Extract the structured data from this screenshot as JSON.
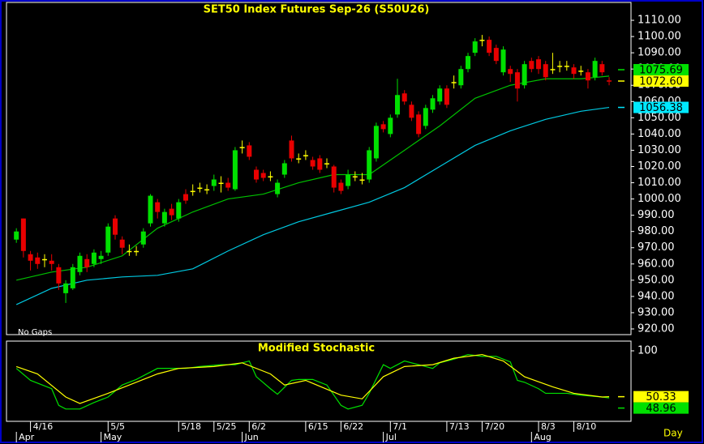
{
  "chart_data": [
    {
      "type": "candlestick",
      "title": "SET50 Index Futures Sep-26 (S50U26)",
      "note": "No Gaps",
      "categories": [
        null,
        null,
        "4/16",
        null,
        null,
        null,
        null,
        null,
        null,
        null,
        null,
        null,
        null,
        "5/5",
        null,
        null,
        null,
        null,
        null,
        null,
        null,
        null,
        null,
        "5/18",
        null,
        null,
        null,
        null,
        "5/25",
        null,
        null,
        null,
        null,
        "6/2",
        null,
        null,
        null,
        null,
        null,
        null,
        null,
        "6/15",
        null,
        null,
        null,
        null,
        "6/22",
        null,
        null,
        null,
        null,
        null,
        null,
        "7/1",
        null,
        null,
        null,
        null,
        null,
        null,
        null,
        "7/13",
        null,
        null,
        null,
        null,
        "7/20",
        null,
        null,
        null,
        null,
        null,
        null,
        null,
        "8/3",
        null,
        null,
        null,
        null,
        "8/10",
        null,
        null,
        null,
        null,
        null
      ],
      "months": [
        "Apr",
        null,
        null,
        null,
        null,
        null,
        null,
        null,
        null,
        null,
        null,
        null,
        "May",
        null,
        null,
        null,
        null,
        null,
        null,
        null,
        null,
        null,
        null,
        null,
        null,
        null,
        null,
        null,
        null,
        null,
        null,
        null,
        "Jun",
        null,
        null,
        null,
        null,
        null,
        null,
        null,
        null,
        null,
        null,
        null,
        null,
        null,
        null,
        null,
        null,
        null,
        null,
        null,
        "Jul",
        null,
        null,
        null,
        null,
        null,
        null,
        null,
        null,
        null,
        null,
        null,
        null,
        null,
        null,
        null,
        null,
        null,
        null,
        null,
        null,
        "Aug",
        null,
        null,
        null,
        null,
        null,
        null,
        null,
        null,
        null,
        null,
        null
      ],
      "open": [
        975,
        988,
        966,
        964,
        963,
        962,
        958,
        942,
        945,
        955,
        963,
        960,
        963,
        967,
        988,
        975,
        968,
        968,
        972,
        985,
        998,
        985,
        994,
        988,
        1003,
        1005,
        1007,
        1006,
        1008,
        1010,
        1010,
        1006,
        1032,
        1033,
        1018,
        1016,
        1014,
        1003,
        1015,
        1036,
        1025,
        1027,
        1024,
        1025,
        1022,
        1020,
        1010,
        1008,
        1014,
        1012,
        1012,
        1025,
        1046,
        1040,
        1052,
        1065,
        1058,
        1052,
        1045,
        1055,
        1060,
        1068,
        1072,
        1070,
        1080,
        1090,
        1098,
        1098,
        1093,
        1078,
        1080,
        1078,
        1070,
        1085,
        1086,
        1083,
        1080,
        1082,
        1082,
        1081,
        1079,
        1078,
        1075,
        1083,
        1073
      ],
      "high": [
        982,
        988,
        968,
        967,
        966,
        966,
        960,
        950,
        960,
        967,
        966,
        969,
        968,
        985,
        990,
        977,
        972,
        971,
        982,
        1003,
        1000,
        994,
        997,
        1000,
        1006,
        1009,
        1010,
        1009,
        1015,
        1014,
        1013,
        1032,
        1036,
        1035,
        1020,
        1018,
        1017,
        1012,
        1024,
        1039,
        1028,
        1030,
        1026,
        1027,
        1025,
        1021,
        1012,
        1018,
        1017,
        1016,
        1032,
        1047,
        1048,
        1052,
        1074,
        1067,
        1060,
        1054,
        1058,
        1064,
        1070,
        1070,
        1076,
        1082,
        1090,
        1099,
        1101,
        1100,
        1095,
        1094,
        1082,
        1080,
        1085,
        1087,
        1088,
        1085,
        1090,
        1085,
        1085,
        1083,
        1082,
        1080,
        1087,
        1085,
        1075
      ],
      "low": [
        973,
        964,
        956,
        957,
        958,
        956,
        944,
        936,
        944,
        953,
        955,
        958,
        960,
        965,
        975,
        966,
        965,
        965,
        970,
        983,
        988,
        983,
        987,
        986,
        997,
        1002,
        1004,
        1003,
        1005,
        1004,
        1005,
        1005,
        1028,
        1024,
        1010,
        1011,
        1011,
        1001,
        1013,
        1023,
        1022,
        1024,
        1018,
        1016,
        1019,
        1004,
        1003,
        1006,
        1011,
        1009,
        1010,
        1023,
        1041,
        1038,
        1050,
        1058,
        1048,
        1038,
        1043,
        1053,
        1058,
        1056,
        1068,
        1068,
        1078,
        1088,
        1094,
        1088,
        1083,
        1076,
        1072,
        1060,
        1068,
        1078,
        1077,
        1073,
        1077,
        1078,
        1079,
        1074,
        1076,
        1068,
        1073,
        1076,
        1070
      ],
      "close": [
        980,
        968,
        962,
        960,
        963,
        960,
        948,
        948,
        958,
        965,
        958,
        967,
        965,
        983,
        978,
        970,
        968,
        968,
        980,
        1002,
        992,
        992,
        990,
        998,
        999,
        1005,
        1007,
        1006,
        1012,
        1010,
        1007,
        1030,
        1032,
        1026,
        1012,
        1013,
        1014,
        1010,
        1022,
        1025,
        1025,
        1027,
        1020,
        1018,
        1022,
        1007,
        1005,
        1015,
        1014,
        1012,
        1030,
        1045,
        1043,
        1050,
        1064,
        1060,
        1050,
        1040,
        1056,
        1062,
        1068,
        1058,
        1072,
        1080,
        1088,
        1097,
        1098,
        1090,
        1085,
        1092,
        1077,
        1068,
        1083,
        1080,
        1080,
        1075,
        1080,
        1082,
        1082,
        1077,
        1079,
        1073,
        1085,
        1078,
        1072.6
      ],
      "close_label": "1072.60",
      "up_color": "#00e000",
      "down_color": "#e80000",
      "flat_color": "#ffff00",
      "label_color": "#ffff00",
      "lines": [
        {
          "color": "#00c000",
          "x": [
            0,
            5,
            10,
            15,
            20,
            25,
            30,
            35,
            40,
            45,
            50,
            55,
            60,
            65,
            70,
            75,
            80,
            84
          ],
          "values": [
            950,
            955,
            958,
            965,
            982,
            992,
            1000,
            1003,
            1010,
            1015,
            1015,
            1030,
            1045,
            1062,
            1070,
            1074,
            1074,
            1075.69
          ]
        },
        {
          "color": "#00c8e0",
          "x": [
            0,
            5,
            10,
            15,
            20,
            25,
            30,
            35,
            40,
            45,
            50,
            55,
            60,
            65,
            70,
            75,
            80,
            84
          ],
          "values": [
            935,
            945,
            950,
            952,
            953,
            957,
            968,
            978,
            986,
            992,
            998,
            1007,
            1020,
            1033,
            1042,
            1049,
            1054,
            1056.38
          ]
        }
      ],
      "xlim": [
        -1.4,
        87.1
      ],
      "ylim": [
        916.5,
        1121
      ],
      "yticks": [
        {
          "value": 920,
          "label": "920.00"
        },
        {
          "value": 930,
          "label": "930.00"
        },
        {
          "value": 940,
          "label": "940.00"
        },
        {
          "value": 950,
          "label": "950.00"
        },
        {
          "value": 960,
          "label": "960.00"
        },
        {
          "value": 970,
          "label": "970.00"
        },
        {
          "value": 980,
          "label": "980.00"
        },
        {
          "value": 990,
          "label": "990.00"
        },
        {
          "value": 1000,
          "label": "1000.00"
        },
        {
          "value": 1010,
          "label": "1010.00"
        },
        {
          "value": 1020,
          "label": "1020.00"
        },
        {
          "value": 1030,
          "label": "1030.00"
        },
        {
          "value": 1040,
          "label": "1040.00"
        },
        {
          "value": 1050,
          "label": "1050.00"
        },
        {
          "value": 1060,
          "label": "1060.00"
        },
        {
          "value": 1070,
          "label": "1070.00"
        },
        {
          "value": 1080,
          "label": "1080.00"
        },
        {
          "value": 1090,
          "label": "1090.00"
        },
        {
          "value": 1100,
          "label": "1100.00"
        },
        {
          "value": 1110,
          "label": "1110.00"
        }
      ]
    },
    {
      "type": "line",
      "title": "Modified Stochastic",
      "x_label": "Day",
      "series": [
        {
          "color": "#00e000",
          "x": [
            0,
            2,
            5,
            6,
            7,
            9,
            11,
            13,
            15,
            17,
            20,
            22,
            24,
            26,
            29,
            31,
            33,
            34,
            36,
            37,
            39,
            40,
            42,
            44,
            46,
            47,
            49,
            50,
            52,
            53,
            55,
            57,
            59,
            60,
            62,
            64,
            66,
            68,
            70,
            71,
            72,
            74,
            75,
            77,
            78,
            80,
            83,
            84
          ],
          "values": [
            81,
            68,
            59,
            41,
            37,
            37,
            44,
            50,
            63,
            69,
            81,
            81,
            81,
            83,
            85,
            85,
            89,
            72,
            59,
            53,
            68,
            69,
            69,
            63,
            41,
            37,
            41,
            54,
            85,
            81,
            89,
            85,
            81,
            87,
            91,
            96,
            94,
            94,
            88,
            68,
            66,
            59,
            54,
            54,
            54,
            52,
            50,
            48.96
          ]
        },
        {
          "color": "#ffff00",
          "x": [
            0,
            3,
            7,
            9,
            13,
            16,
            20,
            23,
            28,
            32,
            36,
            38,
            41,
            46,
            49,
            52,
            55,
            59,
            62,
            66,
            69,
            72,
            76,
            79,
            83,
            84
          ],
          "values": [
            83,
            75,
            50,
            43,
            54,
            63,
            75,
            81,
            83,
            87,
            75,
            63,
            68,
            52,
            48,
            72,
            83,
            85,
            92,
            96,
            89,
            72,
            61,
            54,
            50,
            50.33
          ]
        }
      ],
      "xlim": [
        -1.4,
        87.1
      ],
      "ylim": [
        0,
        110
      ],
      "yticks": [
        100
      ]
    }
  ]
}
